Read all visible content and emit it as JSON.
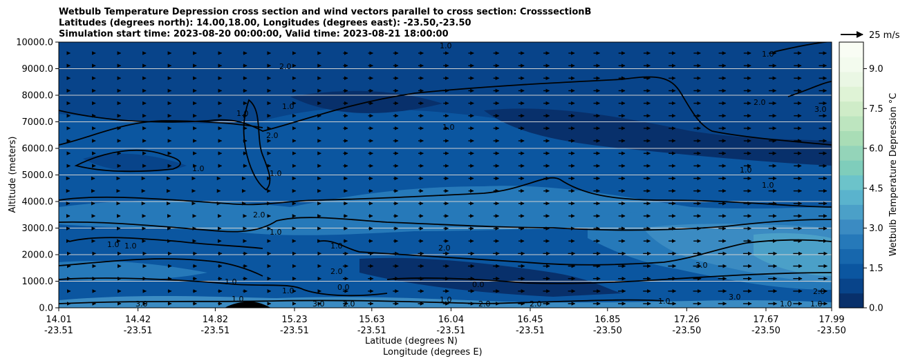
{
  "chart_data": {
    "type": "heatmap",
    "title_lines": [
      "Wetbulb Temperature Depression cross section and wind vectors parallel to cross section: CrosssectionB",
      "Latitudes (degrees north): 14.00,18.00, Longitudes (degrees east): -23.50,-23.50",
      "Simulation start time: 2023-08-20 00:00:00, Valid time: 2023-08-21 18:00:00"
    ],
    "ylabel": "Altitude (meters)",
    "xlabel_lat": "Latitude (degrees N)",
    "xlabel_lon": "Longitude (degrees E)",
    "ylim": [
      0,
      10000
    ],
    "yticks": [
      "0.0",
      "1000.0",
      "2000.0",
      "3000.0",
      "4000.0",
      "5000.0",
      "6000.0",
      "7000.0",
      "8000.0",
      "9000.0",
      "10000.0"
    ],
    "xticks": [
      {
        "lat": "14.01",
        "lon": "-23.51",
        "frac": 0.0
      },
      {
        "lat": "14.42",
        "lon": "-23.51",
        "frac": 0.1025
      },
      {
        "lat": "14.82",
        "lon": "-23.51",
        "frac": 0.2025
      },
      {
        "lat": "15.23",
        "lon": "-23.51",
        "frac": 0.305
      },
      {
        "lat": "15.63",
        "lon": "-23.51",
        "frac": 0.405
      },
      {
        "lat": "16.04",
        "lon": "-23.51",
        "frac": 0.5075
      },
      {
        "lat": "16.45",
        "lon": "-23.51",
        "frac": 0.61
      },
      {
        "lat": "16.85",
        "lon": "-23.50",
        "frac": 0.71
      },
      {
        "lat": "17.26",
        "lon": "-23.50",
        "frac": 0.8125
      },
      {
        "lat": "17.67",
        "lon": "-23.50",
        "frac": 0.915
      },
      {
        "lat": "17.99",
        "lon": "-23.50",
        "frac": 1.0
      }
    ],
    "colorbar": {
      "label": "Wetbulb Temperature Depression °C",
      "range": [
        0,
        10
      ],
      "ticks": [
        "0.0",
        "1.5",
        "3.0",
        "4.5",
        "6.0",
        "7.5",
        "9.0"
      ],
      "colors": [
        "#08306b",
        "#08448a",
        "#0b56a0",
        "#1767ad",
        "#2679b9",
        "#3b8bc2",
        "#4ba0c8",
        "#5ab3cd",
        "#6cc3ca",
        "#7fcdbb",
        "#94d4b9",
        "#a9ddb6",
        "#bde5bf",
        "#cfecc8",
        "#dff3d6",
        "#eaf7e4",
        "#f3fbee",
        "#f9fdf4"
      ]
    },
    "wind_reference": "25 m/s",
    "contour_labels": [
      "1.0",
      "2.0",
      "3.0",
      "0.0"
    ],
    "regions": [
      {
        "name": "background",
        "value": 1.2
      },
      {
        "name": "upper-dark",
        "value": 0.6
      },
      {
        "name": "mid-moist",
        "value": 2.2
      },
      {
        "name": "low-dry",
        "value": 3.2
      },
      {
        "name": "surface-moist",
        "value": 0.5
      }
    ]
  }
}
